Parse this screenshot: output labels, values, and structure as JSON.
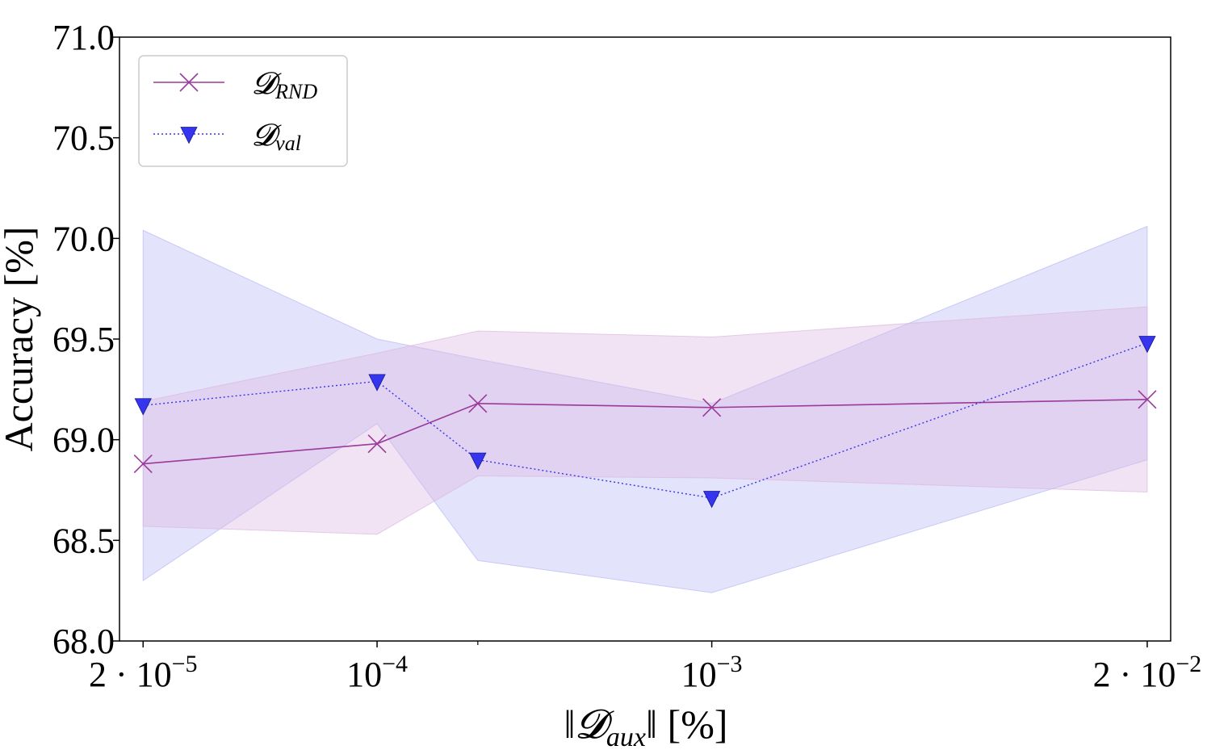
{
  "chart_data": {
    "type": "line",
    "title": "",
    "xlabel": "‖𝓓aux‖ [%]",
    "xlabel_parts": {
      "open": "‖",
      "symbol": "𝓓",
      "subscript": "aux",
      "close": "‖ [%]"
    },
    "ylabel": "Accuracy [%]",
    "ylim": [
      68.0,
      71.0
    ],
    "yticks": [
      {
        "value": 68.0,
        "label": "68.0"
      },
      {
        "value": 68.5,
        "label": "68.5"
      },
      {
        "value": 69.0,
        "label": "69.0"
      },
      {
        "value": 69.5,
        "label": "69.5"
      },
      {
        "value": 70.0,
        "label": "70.0"
      },
      {
        "value": 70.5,
        "label": "70.5"
      },
      {
        "value": 71.0,
        "label": "71.0"
      }
    ],
    "x_scale": "log",
    "xlim": [
      1.7e-05,
      0.0235
    ],
    "xticks": [
      {
        "value": 2e-05,
        "base": "2 · 10",
        "exp": "−5"
      },
      {
        "value": 0.0001,
        "base": "10",
        "exp": "−4"
      },
      {
        "value": 0.001,
        "base": "10",
        "exp": "−3"
      },
      {
        "value": 0.02,
        "base": "2 · 10",
        "exp": "−2"
      }
    ],
    "minor_xticks": [
      0.0002
    ],
    "x": [
      2e-05,
      0.0001,
      0.0002,
      0.001,
      0.02
    ],
    "series": [
      {
        "name": "D_RND",
        "legend_symbol": "𝓓",
        "legend_sub": "RND",
        "color": "#9b3a9b",
        "band_color": "#dcb8e0",
        "marker": "x",
        "linestyle": "solid",
        "values": [
          68.88,
          68.98,
          69.18,
          69.16,
          69.2
        ],
        "lower": [
          68.57,
          68.53,
          68.82,
          68.81,
          68.74
        ],
        "upper": [
          69.19,
          69.43,
          69.54,
          69.51,
          69.66
        ]
      },
      {
        "name": "D_val",
        "legend_symbol": "𝓓",
        "legend_sub": "val",
        "color": "#3535f0",
        "band_color": "#b8b8f5",
        "marker": "triangle-down",
        "linestyle": "dotted",
        "values": [
          69.17,
          69.29,
          68.9,
          68.71,
          69.48
        ],
        "lower": [
          68.3,
          69.08,
          68.4,
          68.24,
          68.9
        ],
        "upper": [
          70.04,
          69.5,
          69.4,
          69.18,
          70.06
        ]
      }
    ],
    "legend_position": "top-left",
    "grid": false
  }
}
